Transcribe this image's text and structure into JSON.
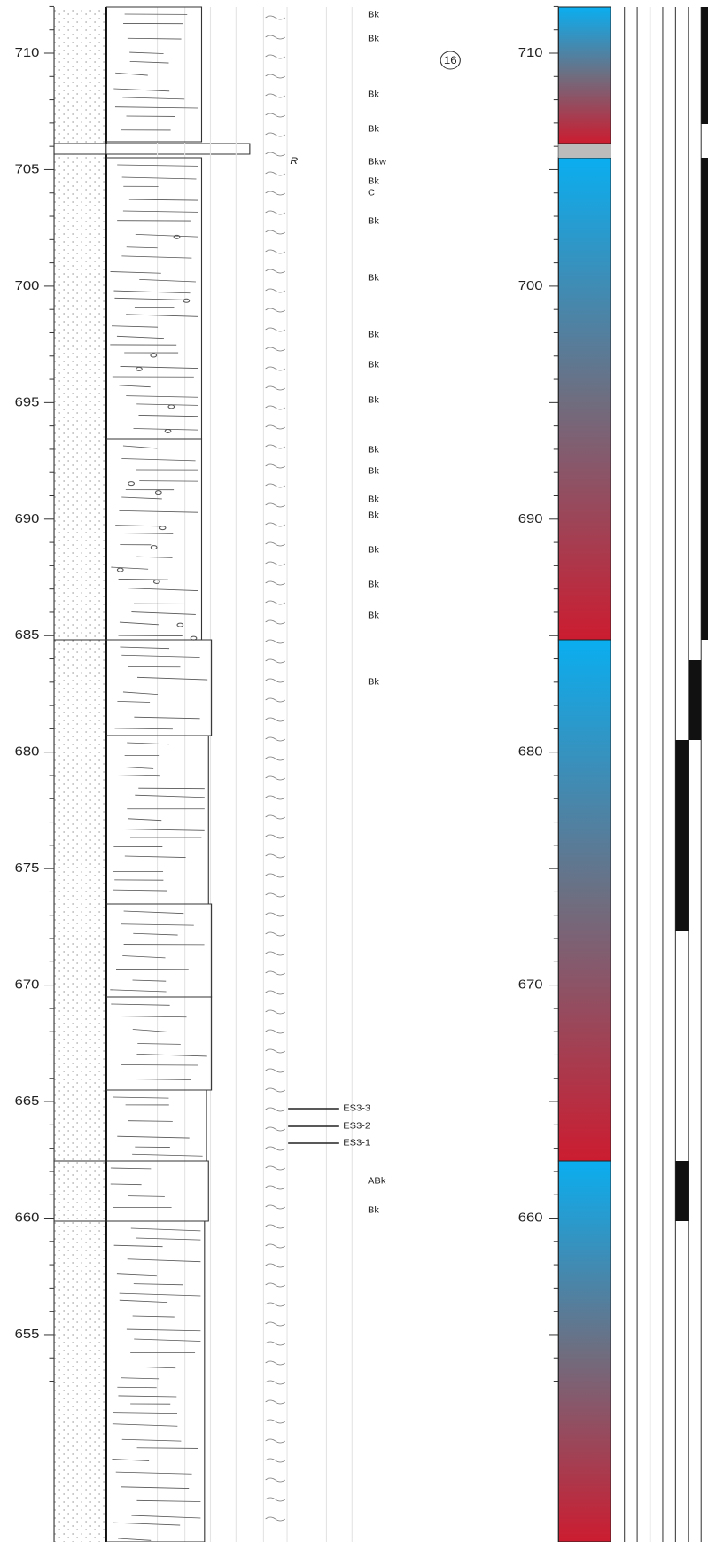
{
  "depth_axis": {
    "ticks": [
      "710",
      "705",
      "700",
      "695",
      "690",
      "685",
      "680",
      "675",
      "670",
      "665",
      "660",
      "655"
    ]
  },
  "color_axis": {
    "ticks": [
      "710",
      "700",
      "690",
      "680",
      "670",
      "660"
    ]
  },
  "bed_number": "16",
  "marker": "R",
  "horizons": [
    "Bk",
    "Bk",
    "Bk",
    "Bk",
    "Bkw",
    "Bk",
    "C",
    "Bk",
    "Bk",
    "Bk",
    "Bk",
    "Bk",
    "Bk",
    "Bk",
    "Bk",
    "Bk",
    "Bk",
    "Bk",
    "Bk",
    "Bk",
    "ABk",
    "Bk"
  ],
  "samples": [
    "ES3-3",
    "ES3-2",
    "ES3-1"
  ]
}
